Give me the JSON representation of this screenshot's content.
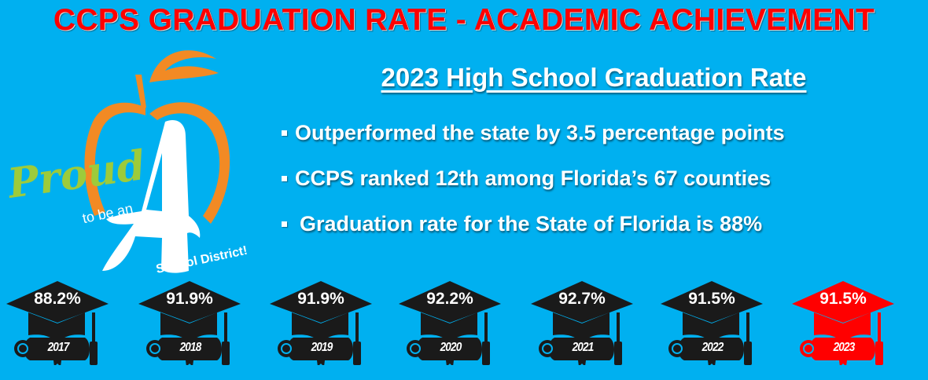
{
  "header": {
    "title": "CCPS GRADUATION RATE - ACADEMIC ACHIEVEMENT"
  },
  "logo": {
    "script_text": "Proud",
    "line2": "to be an",
    "big_letter": "A",
    "line3": "School District!",
    "colors": {
      "apple": "#f28a24",
      "proud": "#9dcb3b",
      "letter": "#ffffff"
    }
  },
  "main": {
    "subtitle": "2023 High School Graduation Rate",
    "bullets": [
      "Outperformed the state by 3.5 percentage points",
      "CCPS ranked 12th among Florida’s 67 counties",
      "Graduation rate for the State of Florida is 88%"
    ]
  },
  "caps": [
    {
      "year": "2017",
      "rate": "88.2%",
      "color": "#1a1a1a"
    },
    {
      "year": "2018",
      "rate": "91.9%",
      "color": "#1a1a1a"
    },
    {
      "year": "2019",
      "rate": "91.9%",
      "color": "#1a1a1a"
    },
    {
      "year": "2020",
      "rate": "92.2%",
      "color": "#1a1a1a"
    },
    {
      "year": "2021",
      "rate": "92.7%",
      "color": "#1a1a1a"
    },
    {
      "year": "2022",
      "rate": "91.5%",
      "color": "#1a1a1a"
    },
    {
      "year": "2023",
      "rate": "91.5%",
      "color": "#ff0000"
    }
  ],
  "colors": {
    "background": "#00b0f0",
    "title": "#ff0000",
    "text": "#ffffff"
  }
}
